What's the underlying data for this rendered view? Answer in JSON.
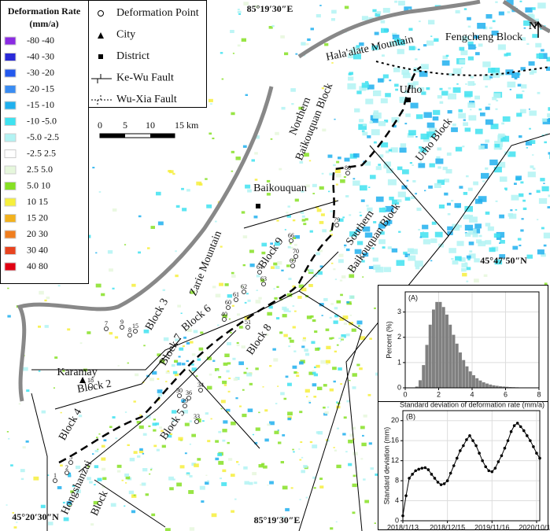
{
  "map": {
    "coordinates": [
      "85°19′30″E",
      "45°47′50″N",
      "85°19′30″E",
      "45°20′30″N"
    ],
    "north": "N",
    "places": [
      "Hala'alate Mountain",
      "Fengcheng Block",
      "Urho",
      "Urho Block",
      "Northern",
      "Baikouquan Block",
      "Baikouquan",
      "Southern",
      "Baikouquan Block",
      "Zarie Mountain",
      "Block 3",
      "Block 6",
      "Block 7",
      "Block 9",
      "Block 8",
      "Karamay",
      "Block 2",
      "Block 4",
      "Block 5",
      "Hongshanzui",
      "Block"
    ],
    "point_labels": [
      "80",
      "79",
      "70",
      "69",
      "66",
      "64",
      "63",
      "62",
      "61",
      "60",
      "51",
      "40",
      "36",
      "34",
      "33",
      "30",
      "29",
      "18",
      "15",
      "9",
      "8",
      "7",
      "5",
      "2",
      "1"
    ]
  },
  "legend": {
    "title": [
      "Deformation Rate",
      "(mm/a)"
    ],
    "classes": [
      {
        "label": "-80 -40",
        "color": "#8a2be2"
      },
      {
        "label": "-40 -30",
        "color": "#2a2ad8"
      },
      {
        "label": "-30 -20",
        "color": "#2459ee"
      },
      {
        "label": "-20 -15",
        "color": "#3a8cf2"
      },
      {
        "label": "-15 -10",
        "color": "#20b0ee"
      },
      {
        "label": "-10 -5.0",
        "color": "#3fe2f0"
      },
      {
        "label": "-5.0 -2.5",
        "color": "#b2f3f3"
      },
      {
        "label": "-2.5 2.5",
        "color": "#ffffff"
      },
      {
        "label": "2.5 5.0",
        "color": "#e6f7dc"
      },
      {
        "label": "5.0 10",
        "color": "#86e024"
      },
      {
        "label": "10 15",
        "color": "#f6ef3c"
      },
      {
        "label": "15 20",
        "color": "#f2b21e"
      },
      {
        "label": "20 30",
        "color": "#f07e1e"
      },
      {
        "label": "30 40",
        "color": "#e84420"
      },
      {
        "label": "40 80",
        "color": "#e00012"
      }
    ],
    "symbols": [
      "Deformation Point",
      "City",
      "District",
      "Ke-Wu Fault",
      "Wu-Xia Fault"
    ],
    "scale": [
      "0",
      "5",
      "10",
      "15 km"
    ]
  },
  "chart_data": [
    {
      "type": "histogram",
      "label": "(A)",
      "x_label": "Standard deviation of deformation rate (mm/a)",
      "y_label": "Percent (%)",
      "color": "#808080",
      "bins": [
        0,
        0.2,
        0.4,
        0.6,
        0.8,
        1,
        1.2,
        1.4,
        1.6,
        1.8,
        2,
        2.2,
        2.4,
        2.6,
        2.8,
        3,
        3.2,
        3.4,
        3.6,
        3.8,
        4,
        4.2,
        4.4,
        4.6,
        4.8,
        5,
        5.2,
        5.4,
        5.6,
        5.8,
        6,
        6.2,
        6.4,
        6.6,
        6.8,
        7,
        7.2,
        7.4,
        7.6,
        7.8,
        8
      ],
      "values": [
        0,
        0,
        0,
        0.05,
        0.3,
        0.9,
        1.7,
        2.5,
        3.1,
        3.4,
        3.4,
        3.2,
        2.9,
        2.5,
        2.1,
        1.75,
        1.4,
        1.1,
        0.85,
        0.65,
        0.5,
        0.38,
        0.29,
        0.22,
        0.17,
        0.13,
        0.1,
        0.08,
        0.06,
        0.05,
        0.04,
        0.03,
        0.025,
        0.02,
        0.015,
        0.01,
        0.01,
        0.005,
        0.005,
        0
      ],
      "xlim": [
        0,
        8
      ],
      "ylim": [
        0,
        3.8
      ],
      "xticks": [
        0,
        2,
        4,
        6,
        8
      ],
      "yticks": [
        0,
        1,
        2,
        3
      ],
      "grid": true
    },
    {
      "type": "line",
      "label": "(B)",
      "x_label": "Date",
      "y_label": "Standard deviation (mm)",
      "color": "#000000",
      "categories": [
        "2018/1/13",
        null,
        null,
        null,
        null,
        null,
        null,
        null,
        null,
        null,
        null,
        null,
        null,
        null,
        "2018/12/15",
        null,
        null,
        null,
        null,
        null,
        null,
        null,
        null,
        null,
        null,
        null,
        null,
        null,
        "2019/11/16",
        null,
        null,
        null,
        null,
        null,
        null,
        null,
        null,
        null,
        null,
        null,
        null,
        null,
        "2020/10/17",
        null
      ],
      "values": [
        1,
        5,
        8.5,
        9.3,
        10,
        10.3,
        10.5,
        10.6,
        10.2,
        9.3,
        8.5,
        7.7,
        7.2,
        7.4,
        8,
        9.5,
        11,
        12.5,
        14,
        15,
        16.2,
        17,
        16,
        15,
        13.5,
        12,
        10.8,
        10,
        9.8,
        10.5,
        11.8,
        13,
        14.5,
        16,
        17.8,
        19,
        19.5,
        18.8,
        18,
        17,
        16,
        14.8,
        13.5,
        12.5
      ],
      "ylim": [
        0,
        22
      ],
      "yticks": [
        0,
        4,
        8,
        12,
        16,
        20
      ],
      "grid": true
    }
  ]
}
